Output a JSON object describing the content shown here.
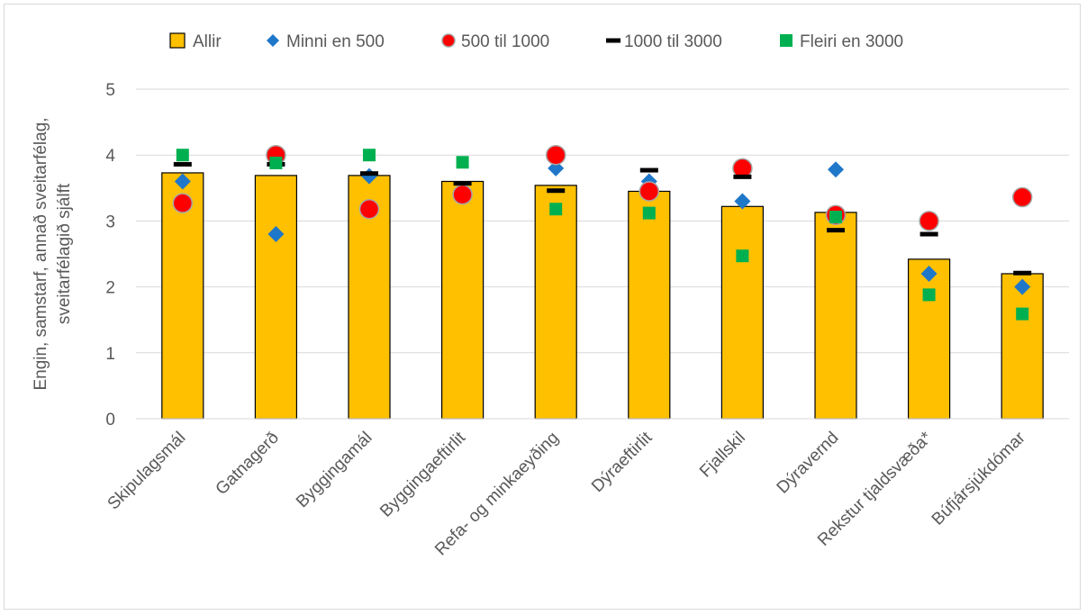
{
  "chart_data": {
    "type": "bar",
    "title": "",
    "xlabel": "",
    "ylabel": "Engin, samstarf, annað sveitarfélag, sveitarfélagið sjálft",
    "ylabel_lines": [
      "Engin, samstarf, annað sveitarfélag,",
      "sveitarfélagið sjálft"
    ],
    "ylim": [
      0,
      5
    ],
    "yticks": [
      "0",
      "1",
      "2",
      "3",
      "4",
      "5"
    ],
    "grid": true,
    "legend_position": "top",
    "categories": [
      "Skipulagsmál",
      "Gatnagerð",
      "Byggingamál",
      "Byggingaeftirlit",
      "Refa- og minkaeyðing",
      "Dýraeftirlit",
      "Fjallskil",
      "Dýravernd",
      "Rekstur tjaldsvæða*",
      "Búfjársjúkdómar"
    ],
    "series": [
      {
        "name": "Allir",
        "kind": "bar",
        "color": "#ffc000",
        "values": [
          3.73,
          3.69,
          3.69,
          3.6,
          3.54,
          3.45,
          3.22,
          3.13,
          2.42,
          2.2
        ]
      },
      {
        "name": "Minni en 500",
        "kind": "diamond",
        "color": "#1f77c9",
        "values": [
          3.6,
          2.8,
          3.68,
          null,
          3.8,
          3.6,
          3.3,
          3.78,
          2.2,
          2.0
        ]
      },
      {
        "name": "500 til 1000",
        "kind": "circle",
        "color": "#ff0000",
        "values": [
          3.27,
          4.0,
          3.18,
          3.4,
          4.0,
          3.45,
          3.8,
          3.09,
          3.0,
          3.36
        ]
      },
      {
        "name": "1000 til 3000",
        "kind": "dash",
        "color": "#000000",
        "values": [
          3.86,
          3.86,
          3.72,
          3.57,
          3.46,
          3.77,
          3.67,
          2.86,
          2.8,
          2.21
        ]
      },
      {
        "name": "Fleiri en 3000",
        "kind": "square",
        "color": "#00b050",
        "values": [
          4.0,
          3.88,
          4.0,
          3.89,
          3.18,
          3.12,
          2.47,
          3.06,
          1.88,
          1.59
        ]
      }
    ]
  }
}
